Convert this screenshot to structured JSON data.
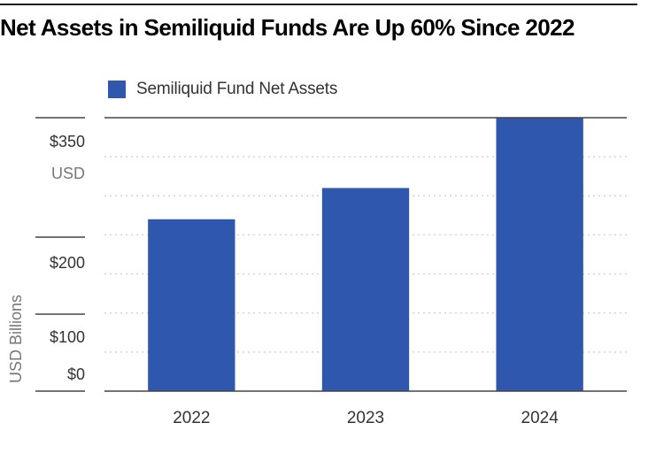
{
  "chart_data": {
    "type": "bar",
    "title": "Net Assets in Semiliquid Funds Are Up 60% Since 2022",
    "ylabel": "USD Billions",
    "categories": [
      "2022",
      "2023",
      "2024"
    ],
    "series": [
      {
        "name": "Semiliquid Fund Net Assets",
        "values": [
          220,
          260,
          350
        ]
      }
    ],
    "ylim": [
      0,
      350
    ],
    "y_tick_labels": [
      "$350",
      "USD",
      "$200",
      "$100",
      "$0"
    ],
    "grid": true,
    "legend_position": "top-left",
    "colors": {
      "bar": "#2e57ad",
      "gridline": "#cccccc",
      "axis": "#444444"
    }
  }
}
